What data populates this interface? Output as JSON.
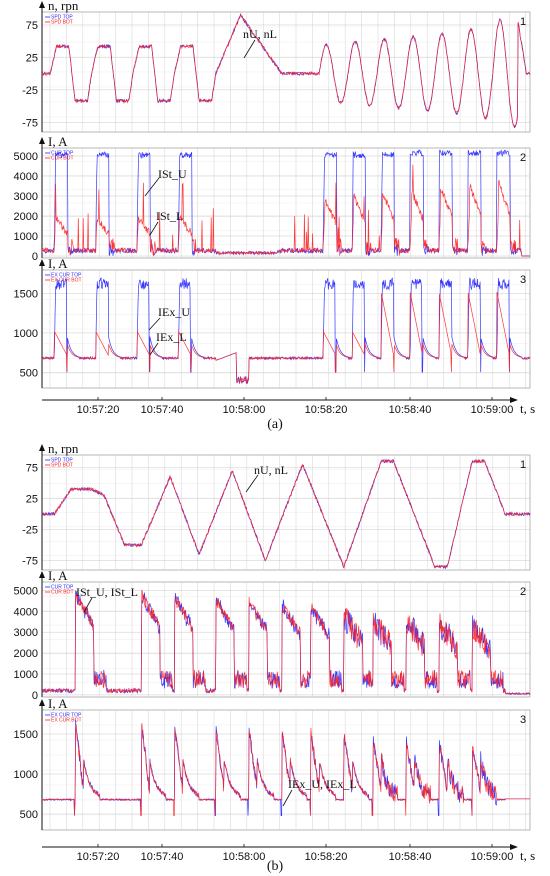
{
  "colors": {
    "top": "#2b2bff",
    "bot": "#ff2020",
    "grid": "#c8c8c8"
  },
  "figures": [
    {
      "caption": "(a)",
      "xlabel": "t, s",
      "xticks": [
        "10:57:20",
        "10:57:40",
        "10:58:00",
        "10:58:20",
        "10:58:40",
        "10:59:00"
      ],
      "panels": [
        {
          "num": "1",
          "ylabel": "n, rpn",
          "type": "speed",
          "yticks": [
            "75",
            "25",
            "-25",
            "-75"
          ],
          "legend": [
            "SPD TOP",
            "SPD BOT"
          ],
          "annotation": "nU, nL"
        },
        {
          "num": "2",
          "ylabel": "I, A",
          "type": "stator",
          "yticks": [
            "5000",
            "4000",
            "3000",
            "2000",
            "1000",
            "0"
          ],
          "legend": [
            "CUR TOP",
            "CUR BOT"
          ],
          "annotation": "ISt_U",
          "annotation2": "ISt_L"
        },
        {
          "num": "3",
          "ylabel": "I, A",
          "type": "excitation",
          "yticks": [
            "1500",
            "1000",
            "500"
          ],
          "legend": [
            "EX CUR TOP",
            "EX CUR BOT"
          ],
          "annotation": "IEx_U",
          "annotation2": "IEx_L"
        }
      ]
    },
    {
      "caption": "(b)",
      "xlabel": "t, s",
      "xticks": [
        "10:57:20",
        "10:57:40",
        "10:58:00",
        "10:58:20",
        "10:58:40",
        "10:59:00"
      ],
      "panels": [
        {
          "num": "1",
          "ylabel": "n, rpn",
          "type": "speed",
          "yticks": [
            "75",
            "25",
            "-25",
            "-75"
          ],
          "legend": [
            "SPD TOP",
            "SPD BOT"
          ],
          "annotation": "nU, nL"
        },
        {
          "num": "2",
          "ylabel": "I, A",
          "type": "stator",
          "yticks": [
            "5000",
            "4000",
            "3000",
            "2000",
            "1000",
            "0"
          ],
          "legend": [
            "CUR TOP",
            "CUR BOT"
          ],
          "annotation": "ISt_U, ISt_L"
        },
        {
          "num": "3",
          "ylabel": "I, A",
          "type": "excitation",
          "yticks": [
            "1500",
            "1000",
            "500"
          ],
          "legend": [
            "EX CUR TOP",
            "EX CUR BOT"
          ],
          "annotation": "IEx_U, IEx_L"
        }
      ]
    }
  ],
  "chart_data": [
    {
      "type": "line",
      "panel": "a-1",
      "ylabel": "n, rpn",
      "ylim": [
        -90,
        95
      ],
      "series": [
        {
          "name": "SPD TOP"
        },
        {
          "name": "SPD BOT"
        }
      ],
      "x": [
        "10:57:20",
        "10:57:40",
        "10:58:00",
        "10:58:20",
        "10:58:40",
        "10:59:00"
      ]
    },
    {
      "type": "line",
      "panel": "a-2",
      "ylabel": "I, A",
      "ylim": [
        0,
        5400
      ],
      "series": [
        {
          "name": "CUR TOP"
        },
        {
          "name": "CUR BOT"
        }
      ]
    },
    {
      "type": "line",
      "panel": "a-3",
      "ylabel": "I, A",
      "ylim": [
        300,
        1800
      ],
      "series": [
        {
          "name": "EX CUR TOP"
        },
        {
          "name": "EX CUR BOT"
        }
      ]
    },
    {
      "type": "line",
      "panel": "b-1",
      "ylabel": "n, rpn",
      "ylim": [
        -90,
        95
      ],
      "series": [
        {
          "name": "SPD TOP"
        },
        {
          "name": "SPD BOT"
        }
      ]
    },
    {
      "type": "line",
      "panel": "b-2",
      "ylabel": "I, A",
      "ylim": [
        0,
        5400
      ],
      "series": [
        {
          "name": "CUR TOP"
        },
        {
          "name": "CUR BOT"
        }
      ]
    },
    {
      "type": "line",
      "panel": "b-3",
      "ylabel": "I, A",
      "ylim": [
        350,
        1800
      ],
      "series": [
        {
          "name": "EX CUR TOP"
        },
        {
          "name": "EX CUR BOT"
        }
      ]
    }
  ]
}
